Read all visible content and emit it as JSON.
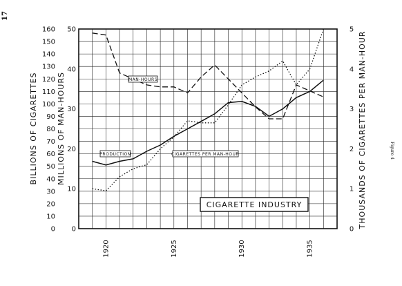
{
  "page": {
    "number": "17",
    "figure_label": "Figure 4"
  },
  "chart_data": {
    "type": "line",
    "title": "CIGARETTE INDUSTRY",
    "x": [
      1919,
      1920,
      1921,
      1922,
      1923,
      1924,
      1925,
      1926,
      1927,
      1928,
      1929,
      1930,
      1931,
      1932,
      1933,
      1934,
      1935,
      1936
    ],
    "xticks": [
      "1920",
      "1925",
      "1930",
      "1935"
    ],
    "xlim": [
      1918,
      1937
    ],
    "left_axes": [
      {
        "label": "BILLIONS OF CIGARETTES",
        "ticks": [
          "0",
          "10",
          "20",
          "30",
          "40",
          "50",
          "60",
          "70",
          "80",
          "90",
          "100",
          "110",
          "120",
          "130",
          "140",
          "150",
          "160"
        ],
        "ylim": [
          0,
          160
        ]
      },
      {
        "label": "MILLIONS OF MAN-HOURS",
        "ticks": [
          "0",
          "10",
          "20",
          "30",
          "40",
          "50"
        ],
        "ylim": [
          0,
          50
        ]
      }
    ],
    "right_axis": {
      "label": "THOUSANDS OF CIGARETTES PER MAN-HOUR",
      "ticks": [
        "0",
        "1",
        "2",
        "3",
        "4",
        "5"
      ],
      "ylim": [
        0,
        5
      ]
    },
    "series": [
      {
        "name": "PRODUCTION",
        "axis": "BILLIONS OF CIGARETTES",
        "style": "solid",
        "values": [
          54,
          51,
          54,
          56,
          62,
          67,
          74,
          80,
          86,
          92,
          101,
          102,
          98,
          90,
          96,
          105,
          110,
          119
        ]
      },
      {
        "name": "MAN-HOURS",
        "axis": "MILLIONS OF MAN-HOURS",
        "style": "dashed",
        "values": [
          49,
          48.5,
          39,
          37.5,
          36,
          35.5,
          35.5,
          34,
          38,
          41,
          37.5,
          34,
          30.5,
          27.5,
          27.5,
          36,
          34.5,
          33
        ]
      },
      {
        "name": "CIGARETTES PER MAN-HOUR",
        "axis": "THOUSANDS OF CIGARETTES PER MAN-HOUR",
        "style": "dotted",
        "values": [
          1.0,
          0.95,
          1.3,
          1.5,
          1.6,
          2.0,
          2.3,
          2.7,
          2.65,
          2.65,
          3.1,
          3.6,
          3.8,
          3.95,
          4.2,
          3.6,
          4.0,
          5.0
        ]
      }
    ],
    "grid": true,
    "legend": "inline labels"
  }
}
